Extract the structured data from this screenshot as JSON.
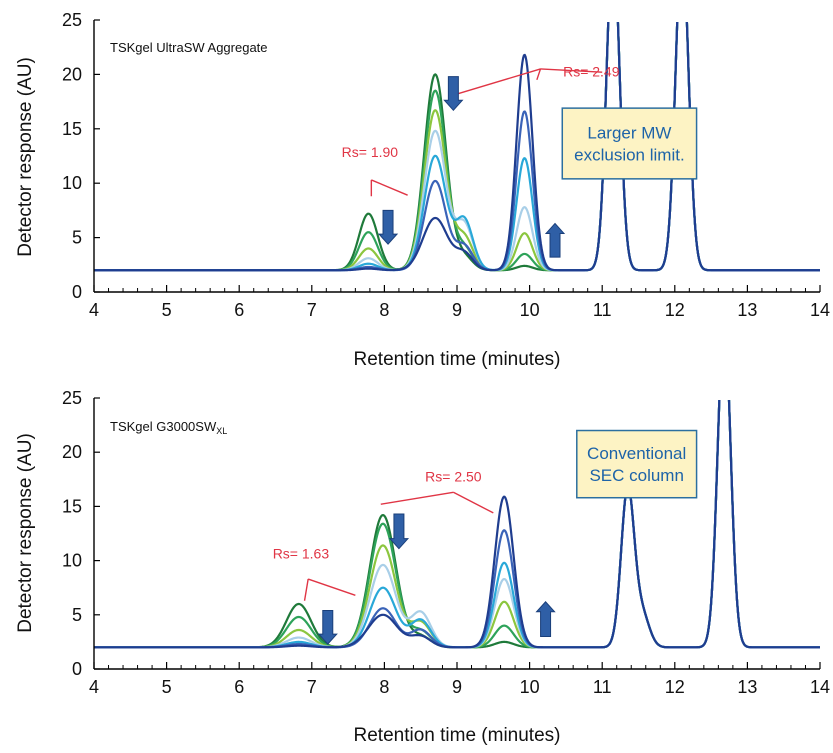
{
  "chart_data": [
    {
      "type": "line",
      "panel_title": "TSKgel UltraSW Aggregate",
      "xlabel": "Retention time (minutes)",
      "ylabel": "Detector response (AU)",
      "xlim": [
        4,
        14
      ],
      "ylim": [
        0,
        25
      ],
      "xticks": [
        4,
        5,
        6,
        7,
        8,
        9,
        10,
        11,
        12,
        13,
        14
      ],
      "yticks": [
        0,
        5,
        10,
        15,
        20,
        25
      ],
      "baseline": 2.0,
      "shared_peaks": [
        {
          "rt": 11.15,
          "height": 30,
          "width": 0.09
        },
        {
          "rt": 12.1,
          "height": 30,
          "width": 0.09
        }
      ],
      "series": [
        {
          "color": "#1f7a3a",
          "peaks": [
            {
              "rt": 7.78,
              "height": 5.2,
              "width": 0.13
            },
            {
              "rt": 8.7,
              "height": 18.0,
              "width": 0.15
            },
            {
              "rt": 9.1,
              "height": 1.2,
              "width": 0.12
            },
            {
              "rt": 9.93,
              "height": 0.4,
              "width": 0.11
            }
          ]
        },
        {
          "color": "#2ea35a",
          "peaks": [
            {
              "rt": 7.78,
              "height": 3.5,
              "width": 0.13
            },
            {
              "rt": 8.7,
              "height": 16.5,
              "width": 0.15
            },
            {
              "rt": 9.1,
              "height": 2.0,
              "width": 0.12
            },
            {
              "rt": 9.93,
              "height": 1.5,
              "width": 0.11
            }
          ]
        },
        {
          "color": "#8cc63f",
          "peaks": [
            {
              "rt": 7.78,
              "height": 2.0,
              "width": 0.13
            },
            {
              "rt": 8.7,
              "height": 14.7,
              "width": 0.15
            },
            {
              "rt": 9.1,
              "height": 3.0,
              "width": 0.12
            },
            {
              "rt": 9.93,
              "height": 3.4,
              "width": 0.11
            }
          ]
        },
        {
          "color": "#a9cfe8",
          "peaks": [
            {
              "rt": 7.78,
              "height": 1.1,
              "width": 0.13
            },
            {
              "rt": 8.7,
              "height": 12.8,
              "width": 0.15
            },
            {
              "rt": 9.1,
              "height": 4.2,
              "width": 0.12
            },
            {
              "rt": 9.93,
              "height": 5.8,
              "width": 0.11
            }
          ]
        },
        {
          "color": "#29a8d8",
          "peaks": [
            {
              "rt": 7.78,
              "height": 0.6,
              "width": 0.13
            },
            {
              "rt": 8.7,
              "height": 10.5,
              "width": 0.15
            },
            {
              "rt": 9.1,
              "height": 4.6,
              "width": 0.12
            },
            {
              "rt": 9.93,
              "height": 10.3,
              "width": 0.11
            }
          ]
        },
        {
          "color": "#3a63b8",
          "peaks": [
            {
              "rt": 7.78,
              "height": 0.3,
              "width": 0.13
            },
            {
              "rt": 8.7,
              "height": 8.2,
              "width": 0.15
            },
            {
              "rt": 9.1,
              "height": 2.2,
              "width": 0.12
            },
            {
              "rt": 9.93,
              "height": 14.6,
              "width": 0.11
            }
          ]
        },
        {
          "color": "#1f3d8f",
          "peaks": [
            {
              "rt": 7.78,
              "height": 0.15,
              "width": 0.13
            },
            {
              "rt": 8.7,
              "height": 4.8,
              "width": 0.17
            },
            {
              "rt": 9.1,
              "height": 1.5,
              "width": 0.12
            },
            {
              "rt": 9.93,
              "height": 19.8,
              "width": 0.11
            }
          ]
        }
      ],
      "annotations": {
        "rs_labels": [
          {
            "text": "Rs= 1.90",
            "x": 7.8,
            "y": 12.4
          },
          {
            "text": "Rs= 2.49",
            "x": 10.85,
            "y": 19.8
          }
        ],
        "rs_lines": [
          [
            [
              7.82,
              10.3
            ],
            [
              7.82,
              8.8
            ]
          ],
          [
            [
              7.82,
              10.3
            ],
            [
              8.32,
              8.9
            ]
          ],
          [
            [
              8.9,
              18.0
            ],
            [
              10.15,
              20.5
            ]
          ],
          [
            [
              10.15,
              20.5
            ],
            [
              11.0,
              20.2
            ]
          ],
          [
            [
              10.15,
              20.5
            ],
            [
              10.1,
              19.5
            ]
          ]
        ],
        "arrows": [
          {
            "dir": "down",
            "x": 8.05,
            "y_from": 7.5,
            "y_to": 4.4
          },
          {
            "dir": "down",
            "x": 8.95,
            "y_from": 19.8,
            "y_to": 16.7
          },
          {
            "dir": "up",
            "x": 10.35,
            "y_from": 3.2,
            "y_to": 6.3
          }
        ],
        "note": {
          "lines": [
            "Larger MW",
            "exclusion limit."
          ],
          "x0": 10.45,
          "x1": 12.3,
          "y_top": 16.9,
          "y_bot": 10.4
        }
      }
    },
    {
      "type": "line",
      "panel_title": "TSKgel G3000SW",
      "panel_title_subscript": "XL",
      "xlabel": "Retention time (minutes)",
      "ylabel": "Detector response (AU)",
      "xlim": [
        4,
        14
      ],
      "ylim": [
        0,
        25
      ],
      "xticks": [
        4,
        5,
        6,
        7,
        8,
        9,
        10,
        11,
        12,
        13,
        14
      ],
      "yticks": [
        0,
        5,
        10,
        15,
        20,
        25
      ],
      "baseline": 2.0,
      "shared_peaks": [
        {
          "rt": 11.35,
          "height": 14.5,
          "width": 0.09
        },
        {
          "rt": 11.55,
          "height": 3.0,
          "width": 0.1
        },
        {
          "rt": 12.68,
          "height": 30,
          "width": 0.09
        }
      ],
      "series": [
        {
          "color": "#1f7a3a",
          "peaks": [
            {
              "rt": 6.82,
              "height": 4.0,
              "width": 0.17
            },
            {
              "rt": 7.98,
              "height": 12.2,
              "width": 0.18
            },
            {
              "rt": 8.5,
              "height": 1.0,
              "width": 0.14
            },
            {
              "rt": 9.65,
              "height": 0.5,
              "width": 0.13
            }
          ]
        },
        {
          "color": "#2ea35a",
          "peaks": [
            {
              "rt": 6.82,
              "height": 2.8,
              "width": 0.17
            },
            {
              "rt": 7.98,
              "height": 11.4,
              "width": 0.18
            },
            {
              "rt": 8.5,
              "height": 1.5,
              "width": 0.14
            },
            {
              "rt": 9.65,
              "height": 2.0,
              "width": 0.13
            }
          ]
        },
        {
          "color": "#8cc63f",
          "peaks": [
            {
              "rt": 6.82,
              "height": 1.6,
              "width": 0.17
            },
            {
              "rt": 7.98,
              "height": 9.4,
              "width": 0.18
            },
            {
              "rt": 8.5,
              "height": 2.3,
              "width": 0.14
            },
            {
              "rt": 9.65,
              "height": 4.2,
              "width": 0.13
            }
          ]
        },
        {
          "color": "#a9cfe8",
          "peaks": [
            {
              "rt": 6.82,
              "height": 0.9,
              "width": 0.17
            },
            {
              "rt": 7.98,
              "height": 7.6,
              "width": 0.18
            },
            {
              "rt": 8.5,
              "height": 3.2,
              "width": 0.14
            },
            {
              "rt": 9.65,
              "height": 6.3,
              "width": 0.13
            }
          ]
        },
        {
          "color": "#29a8d8",
          "peaks": [
            {
              "rt": 6.82,
              "height": 0.5,
              "width": 0.17
            },
            {
              "rt": 7.98,
              "height": 5.5,
              "width": 0.18
            },
            {
              "rt": 8.5,
              "height": 2.5,
              "width": 0.14
            },
            {
              "rt": 9.65,
              "height": 7.8,
              "width": 0.13
            }
          ]
        },
        {
          "color": "#3a63b8",
          "peaks": [
            {
              "rt": 6.82,
              "height": 0.3,
              "width": 0.17
            },
            {
              "rt": 7.98,
              "height": 3.6,
              "width": 0.18
            },
            {
              "rt": 8.5,
              "height": 1.6,
              "width": 0.14
            },
            {
              "rt": 9.65,
              "height": 10.8,
              "width": 0.13
            }
          ]
        },
        {
          "color": "#1f3d8f",
          "peaks": [
            {
              "rt": 6.82,
              "height": 0.15,
              "width": 0.17
            },
            {
              "rt": 7.98,
              "height": 3.0,
              "width": 0.2
            },
            {
              "rt": 8.5,
              "height": 1.0,
              "width": 0.14
            },
            {
              "rt": 9.65,
              "height": 13.9,
              "width": 0.13
            }
          ]
        }
      ],
      "annotations": {
        "rs_labels": [
          {
            "text": "Rs= 1.63",
            "x": 6.85,
            "y": 10.2
          },
          {
            "text": "Rs= 2.50",
            "x": 8.95,
            "y": 17.3
          }
        ],
        "rs_lines": [
          [
            [
              6.95,
              8.3
            ],
            [
              6.9,
              6.3
            ]
          ],
          [
            [
              6.95,
              8.3
            ],
            [
              7.6,
              6.8
            ]
          ],
          [
            [
              7.95,
              15.2
            ],
            [
              8.95,
              16.3
            ]
          ],
          [
            [
              8.95,
              16.3
            ],
            [
              9.5,
              14.4
            ]
          ]
        ],
        "arrows": [
          {
            "dir": "down",
            "x": 8.2,
            "y_from": 14.3,
            "y_to": 11.1
          },
          {
            "dir": "down",
            "x": 7.22,
            "y_from": 5.4,
            "y_to": 2.3
          },
          {
            "dir": "up",
            "x": 10.22,
            "y_from": 3.0,
            "y_to": 6.2
          }
        ],
        "note": {
          "lines": [
            "Conventional",
            "SEC column"
          ],
          "x0": 10.65,
          "x1": 12.3,
          "y_top": 22.0,
          "y_bot": 15.8
        }
      }
    }
  ]
}
